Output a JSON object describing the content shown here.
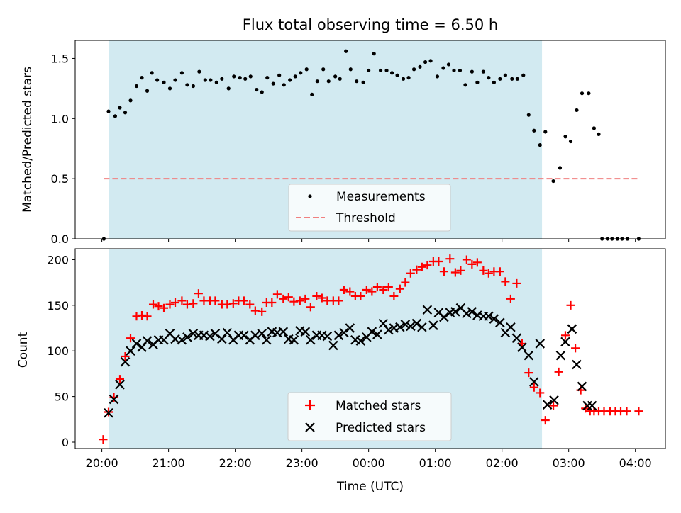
{
  "chart_data": {
    "title": "Flux total observing time = 6.50 h",
    "xlabel": "Time (UTC)",
    "x_ticks": [
      "20:00",
      "21:00",
      "22:00",
      "23:00",
      "00:00",
      "01:00",
      "02:00",
      "03:00",
      "04:00"
    ],
    "x_range_hours": [
      19.6,
      28.45
    ],
    "shaded_region_hours": [
      20.1,
      26.6
    ],
    "shaded_color": "#add8e6",
    "panels": [
      {
        "type": "scatter",
        "ylabel": "Matched/Predicted stars",
        "ylim": [
          0,
          1.65
        ],
        "y_ticks": [
          "0.0",
          "0.5",
          "1.0",
          "1.5"
        ],
        "threshold": {
          "name": "Threshold",
          "value": 0.5,
          "x_range_hours": [
            20.03,
            28.07
          ],
          "color": "#f08080"
        },
        "series": [
          {
            "name": "Measurements",
            "color": "#000000",
            "marker": "dot",
            "x": [
              20.03,
              20.1,
              20.2,
              20.27,
              20.35,
              20.43,
              20.52,
              20.6,
              20.68,
              20.75,
              20.83,
              20.93,
              21.02,
              21.1,
              21.2,
              21.28,
              21.37,
              21.46,
              21.55,
              21.63,
              21.72,
              21.8,
              21.9,
              21.98,
              22.07,
              22.15,
              22.23,
              22.32,
              22.4,
              22.48,
              22.57,
              22.66,
              22.73,
              22.82,
              22.9,
              22.98,
              23.07,
              23.15,
              23.23,
              23.32,
              23.4,
              23.5,
              23.57,
              23.66,
              23.73,
              23.82,
              23.92,
              24.0,
              24.08,
              24.18,
              24.27,
              24.35,
              24.43,
              24.52,
              24.6,
              24.68,
              24.77,
              24.85,
              24.93,
              25.03,
              25.12,
              25.2,
              25.28,
              25.37,
              25.45,
              25.55,
              25.63,
              25.72,
              25.8,
              25.88,
              25.97,
              26.05,
              26.15,
              26.23,
              26.32,
              26.4,
              26.48,
              26.57,
              26.65,
              26.77,
              26.87,
              26.95,
              27.03,
              27.12,
              27.2,
              27.3,
              27.38,
              27.45,
              27.5,
              27.58,
              27.65,
              27.73,
              27.8,
              27.88,
              28.05
            ],
            "y": [
              0.0,
              1.06,
              1.02,
              1.09,
              1.05,
              1.15,
              1.27,
              1.34,
              1.23,
              1.38,
              1.32,
              1.3,
              1.25,
              1.32,
              1.38,
              1.28,
              1.27,
              1.39,
              1.32,
              1.32,
              1.3,
              1.33,
              1.25,
              1.35,
              1.34,
              1.33,
              1.35,
              1.24,
              1.22,
              1.34,
              1.29,
              1.36,
              1.28,
              1.32,
              1.35,
              1.38,
              1.41,
              1.2,
              1.31,
              1.41,
              1.31,
              1.35,
              1.33,
              1.56,
              1.41,
              1.31,
              1.3,
              1.4,
              1.54,
              1.4,
              1.4,
              1.38,
              1.36,
              1.33,
              1.34,
              1.41,
              1.43,
              1.47,
              1.48,
              1.35,
              1.42,
              1.45,
              1.4,
              1.4,
              1.28,
              1.39,
              1.3,
              1.39,
              1.34,
              1.3,
              1.33,
              1.36,
              1.33,
              1.33,
              1.36,
              1.03,
              0.9,
              0.78,
              0.89,
              0.48,
              0.59,
              0.85,
              0.81,
              1.07,
              1.21,
              1.21,
              0.92,
              0.87,
              0.0,
              0.0,
              0.0,
              0.0,
              0.0,
              0.0,
              0.0
            ]
          }
        ],
        "legend": {
          "placement": "lower-center"
        }
      },
      {
        "type": "scatter",
        "ylabel": "Count",
        "ylim": [
          -7,
          212
        ],
        "y_ticks": [
          "0",
          "50",
          "100",
          "150",
          "200"
        ],
        "series": [
          {
            "name": "Matched stars",
            "color": "#ff0000",
            "marker": "plus",
            "x": [
              20.02,
              20.1,
              20.18,
              20.27,
              20.35,
              20.43,
              20.52,
              20.6,
              20.68,
              20.77,
              20.85,
              20.93,
              21.02,
              21.1,
              21.2,
              21.28,
              21.37,
              21.45,
              21.53,
              21.62,
              21.7,
              21.8,
              21.88,
              21.97,
              22.05,
              22.13,
              22.22,
              22.3,
              22.4,
              22.47,
              22.55,
              22.63,
              22.72,
              22.8,
              22.88,
              22.97,
              23.05,
              23.13,
              23.22,
              23.3,
              23.38,
              23.47,
              23.55,
              23.63,
              23.72,
              23.8,
              23.88,
              23.97,
              24.05,
              24.13,
              24.22,
              24.3,
              24.38,
              24.47,
              24.55,
              24.63,
              24.72,
              24.8,
              24.88,
              24.97,
              25.05,
              25.13,
              25.22,
              25.3,
              25.38,
              25.47,
              25.55,
              25.63,
              25.72,
              25.8,
              25.88,
              25.97,
              26.05,
              26.13,
              26.22,
              26.3,
              26.4,
              26.48,
              26.57,
              26.65,
              26.77,
              26.85,
              26.95,
              27.03,
              27.1,
              27.18,
              27.25,
              27.32,
              27.38,
              27.45,
              27.53,
              27.62,
              27.7,
              27.78,
              27.87,
              28.05
            ],
            "y": [
              3,
              33,
              49,
              69,
              94,
              114,
              138,
              139,
              138,
              151,
              149,
              147,
              151,
              153,
              155,
              151,
              152,
              163,
              155,
              155,
              155,
              151,
              151,
              152,
              155,
              155,
              151,
              144,
              143,
              153,
              153,
              162,
              157,
              159,
              154,
              155,
              157,
              148,
              160,
              158,
              155,
              155,
              155,
              167,
              165,
              160,
              160,
              167,
              165,
              170,
              167,
              170,
              160,
              168,
              175,
              185,
              189,
              192,
              194,
              198,
              198,
              187,
              201,
              186,
              188,
              200,
              195,
              197,
              188,
              185,
              187,
              187,
              176,
              157,
              174,
              108,
              76,
              60,
              54,
              24,
              40,
              77,
              117,
              150,
              103,
              57,
              37,
              34,
              34,
              34,
              34,
              34,
              34,
              34,
              34,
              34
            ]
          },
          {
            "name": "Predicted stars",
            "color": "#000000",
            "marker": "x",
            "x": [
              20.1,
              20.18,
              20.27,
              20.35,
              20.43,
              20.52,
              20.6,
              20.68,
              20.77,
              20.85,
              20.93,
              21.02,
              21.1,
              21.2,
              21.28,
              21.37,
              21.45,
              21.53,
              21.62,
              21.7,
              21.8,
              21.88,
              21.97,
              22.05,
              22.13,
              22.22,
              22.3,
              22.4,
              22.47,
              22.55,
              22.63,
              22.72,
              22.8,
              22.88,
              22.97,
              23.05,
              23.13,
              23.22,
              23.3,
              23.38,
              23.47,
              23.55,
              23.63,
              23.72,
              23.8,
              23.88,
              23.97,
              24.05,
              24.13,
              24.22,
              24.3,
              24.38,
              24.47,
              24.55,
              24.63,
              24.72,
              24.8,
              24.88,
              24.97,
              25.05,
              25.13,
              25.22,
              25.3,
              25.38,
              25.47,
              25.55,
              25.63,
              25.72,
              25.8,
              25.88,
              25.97,
              26.05,
              26.13,
              26.22,
              26.3,
              26.4,
              26.48,
              26.57,
              26.68,
              26.78,
              26.88,
              26.95,
              27.05,
              27.12,
              27.2,
              27.28,
              27.35
            ],
            "y": [
              32,
              47,
              63,
              88,
              100,
              108,
              104,
              111,
              107,
              112,
              112,
              119,
              113,
              112,
              115,
              119,
              117,
              117,
              116,
              119,
              113,
              120,
              112,
              117,
              117,
              112,
              117,
              119,
              112,
              121,
              120,
              121,
              113,
              112,
              122,
              121,
              112,
              117,
              117,
              116,
              106,
              117,
              120,
              125,
              112,
              111,
              115,
              121,
              118,
              130,
              123,
              125,
              126,
              129,
              127,
              130,
              126,
              145,
              128,
              142,
              137,
              142,
              143,
              147,
              141,
              143,
              139,
              138,
              138,
              135,
              131,
              120,
              126,
              114,
              104,
              95,
              66,
              108,
              41,
              46,
              95,
              110,
              124,
              85,
              61,
              40,
              40
            ]
          }
        ],
        "legend": {
          "placement": "lower-center"
        }
      }
    ]
  }
}
